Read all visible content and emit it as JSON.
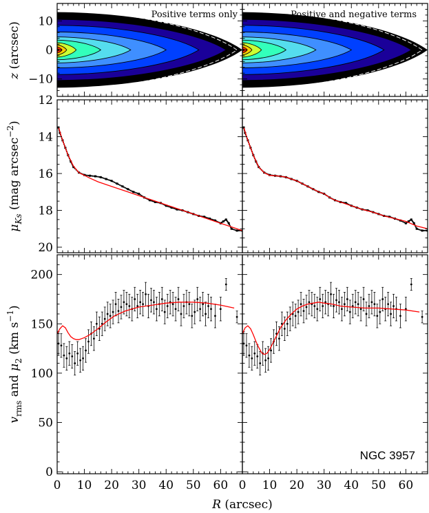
{
  "figure": {
    "annotations": {
      "left_title": "Positive terms only",
      "right_title": "Positive and negative terms",
      "galaxy": "NGC 3957"
    }
  },
  "chart_data": [
    {
      "type": "heatmap",
      "panel": "top-left",
      "title": "Positive terms only",
      "xlabel": "",
      "ylabel": "z (arcsec)",
      "xlim": [
        0,
        68
      ],
      "ylim": [
        -16,
        16
      ],
      "yticks": [
        -10,
        0,
        10
      ],
      "colormap": [
        "#000000",
        "#1a0099",
        "#0040ff",
        "#3f8fff",
        "#55ddee",
        "#33ffbb",
        "#ccff33",
        "#ffcc00",
        "#ff3300",
        "#cc0000"
      ],
      "description_free": true
    },
    {
      "type": "heatmap",
      "panel": "top-right",
      "title": "Positive and negative terms",
      "xlabel": "",
      "ylabel": "",
      "xlim": [
        0,
        68
      ],
      "ylim": [
        -16,
        16
      ],
      "yticks": [
        -10,
        0,
        10
      ]
    },
    {
      "type": "scatter",
      "panel": "middle-left",
      "xlabel": "",
      "ylabel": "μKs (mag arcsec⁻²)",
      "xlim": [
        0,
        68
      ],
      "ylim": [
        20.3,
        12
      ],
      "yticks": [
        12,
        14,
        16,
        18,
        20
      ],
      "series": [
        {
          "kind": "data",
          "x": [
            0.5,
            1,
            2,
            3,
            4,
            5,
            6,
            8,
            10,
            12,
            14,
            16,
            18,
            20,
            22,
            24,
            26,
            28,
            30,
            32,
            34,
            36,
            38,
            40,
            42,
            44,
            46,
            48,
            50,
            52,
            54,
            56,
            58,
            60,
            61,
            62,
            63,
            64,
            66,
            68
          ],
          "y": [
            13.5,
            13.8,
            14.2,
            14.6,
            15.0,
            15.35,
            15.65,
            15.95,
            16.08,
            16.12,
            16.15,
            16.2,
            16.3,
            16.4,
            16.55,
            16.7,
            16.85,
            17.0,
            17.1,
            17.3,
            17.45,
            17.55,
            17.6,
            17.75,
            17.85,
            17.95,
            18.0,
            18.1,
            18.2,
            18.3,
            18.35,
            18.45,
            18.55,
            18.7,
            18.6,
            18.5,
            18.7,
            19.0,
            19.1,
            19.1
          ]
        },
        {
          "kind": "model",
          "color": "#ff0000",
          "x": [
            0.5,
            2,
            4,
            6,
            8,
            10,
            12,
            15,
            20,
            25,
            30,
            35,
            40,
            45,
            50,
            55,
            60,
            65,
            68
          ],
          "y": [
            13.5,
            14.2,
            15.0,
            15.6,
            15.95,
            16.1,
            16.25,
            16.45,
            16.7,
            16.95,
            17.2,
            17.45,
            17.7,
            17.95,
            18.2,
            18.45,
            18.7,
            18.95,
            19.1
          ]
        }
      ]
    },
    {
      "type": "scatter",
      "panel": "middle-right",
      "xlabel": "",
      "ylabel": "",
      "xlim": [
        0,
        68
      ],
      "ylim": [
        20.3,
        12
      ],
      "series": [
        {
          "kind": "data",
          "x": [
            0.5,
            1,
            2,
            3,
            4,
            5,
            6,
            8,
            10,
            12,
            14,
            16,
            18,
            20,
            22,
            24,
            26,
            28,
            30,
            32,
            34,
            36,
            38,
            40,
            42,
            44,
            46,
            48,
            50,
            52,
            54,
            56,
            58,
            60,
            61,
            62,
            63,
            64,
            66,
            68
          ],
          "y": [
            13.5,
            13.8,
            14.2,
            14.6,
            15.0,
            15.35,
            15.65,
            15.95,
            16.08,
            16.12,
            16.15,
            16.2,
            16.3,
            16.4,
            16.55,
            16.7,
            16.85,
            17.0,
            17.1,
            17.3,
            17.45,
            17.55,
            17.6,
            17.75,
            17.85,
            17.95,
            18.0,
            18.1,
            18.2,
            18.3,
            18.35,
            18.45,
            18.55,
            18.7,
            18.6,
            18.5,
            18.7,
            19.0,
            19.1,
            19.1
          ]
        },
        {
          "kind": "model",
          "color": "#ff0000",
          "x": [
            0.5,
            2,
            4,
            6,
            8,
            10,
            12,
            14,
            16,
            18,
            20,
            22,
            24,
            26,
            28,
            30,
            32,
            34,
            36,
            40,
            44,
            48,
            52,
            56,
            60,
            64,
            68
          ],
          "y": [
            13.5,
            14.2,
            15.0,
            15.65,
            15.95,
            16.1,
            16.12,
            16.15,
            16.2,
            16.3,
            16.4,
            16.55,
            16.7,
            16.85,
            17.0,
            17.1,
            17.3,
            17.45,
            17.55,
            17.75,
            17.95,
            18.1,
            18.3,
            18.45,
            18.6,
            18.85,
            19.0
          ]
        }
      ]
    },
    {
      "type": "scatter",
      "panel": "bottom-left",
      "xlabel": "R (arcsec)",
      "ylabel": "vrms and μ2 (km s⁻¹)",
      "xlim": [
        0,
        68
      ],
      "ylim": [
        -2,
        220
      ],
      "xticks": [
        0,
        10,
        20,
        30,
        40,
        50,
        60
      ],
      "yticks": [
        0,
        50,
        100,
        150,
        200
      ],
      "series": [
        {
          "kind": "data",
          "x": [
            0.5,
            1.5,
            2.5,
            3.5,
            4.5,
            5.5,
            6.5,
            7.5,
            8.5,
            9.5,
            10.5,
            11.5,
            12.5,
            13.5,
            14.5,
            15.5,
            16.5,
            17.5,
            18.5,
            19.5,
            20.5,
            21.5,
            22.5,
            23.5,
            24.5,
            25.5,
            26.5,
            27.5,
            28.5,
            29.5,
            30.5,
            31.5,
            32.5,
            33.5,
            34.5,
            35.5,
            36.5,
            37.5,
            38.5,
            39.5,
            40.5,
            41.5,
            42.5,
            43.5,
            44.5,
            45.5,
            46.5,
            47.5,
            48.5,
            49.5,
            50.5,
            51.5,
            52.5,
            53.5,
            54.5,
            55.5,
            56.5,
            58,
            60,
            62,
            66
          ],
          "y": [
            130,
            128,
            118,
            115,
            120,
            117,
            110,
            120,
            113,
            115,
            123,
            132,
            140,
            135,
            150,
            145,
            150,
            155,
            160,
            158,
            162,
            170,
            163,
            167,
            172,
            170,
            168,
            165,
            175,
            168,
            172,
            170,
            180,
            168,
            174,
            172,
            165,
            170,
            175,
            162,
            168,
            172,
            170,
            165,
            175,
            160,
            168,
            172,
            170,
            158,
            162,
            175,
            165,
            170,
            160,
            168,
            165,
            158,
            165,
            190,
            157
          ],
          "err": [
            12,
            12,
            12,
            12,
            12,
            12,
            12,
            12,
            12,
            12,
            12,
            12,
            12,
            12,
            12,
            12,
            12,
            12,
            12,
            12,
            12,
            12,
            12,
            12,
            12,
            12,
            12,
            12,
            12,
            12,
            12,
            12,
            12,
            12,
            12,
            12,
            12,
            12,
            12,
            12,
            12,
            12,
            12,
            12,
            12,
            12,
            12,
            12,
            12,
            12,
            12,
            12,
            12,
            12,
            12,
            12,
            12,
            12,
            12,
            6,
            6
          ]
        },
        {
          "kind": "model",
          "color": "#ff0000",
          "x": [
            0,
            1,
            2,
            3,
            4,
            5,
            6,
            7,
            8,
            10,
            12,
            15,
            18,
            21,
            25,
            30,
            35,
            40,
            45,
            50,
            55,
            60,
            65
          ],
          "y": [
            140,
            145,
            148,
            146,
            141,
            137,
            135,
            134,
            134,
            136,
            139,
            145,
            152,
            158,
            163,
            167,
            169,
            171,
            172,
            172,
            171,
            169,
            166
          ]
        }
      ]
    },
    {
      "type": "scatter",
      "panel": "bottom-right",
      "xlabel": "R (arcsec)",
      "ylabel": "",
      "xlim": [
        0,
        68
      ],
      "ylim": [
        -2,
        220
      ],
      "xticks": [
        0,
        10,
        20,
        30,
        40,
        50,
        60
      ],
      "annotation": "NGC 3957",
      "series": [
        {
          "kind": "data",
          "x": [
            0.5,
            1.5,
            2.5,
            3.5,
            4.5,
            5.5,
            6.5,
            7.5,
            8.5,
            9.5,
            10.5,
            11.5,
            12.5,
            13.5,
            14.5,
            15.5,
            16.5,
            17.5,
            18.5,
            19.5,
            20.5,
            21.5,
            22.5,
            23.5,
            24.5,
            25.5,
            26.5,
            27.5,
            28.5,
            29.5,
            30.5,
            31.5,
            32.5,
            33.5,
            34.5,
            35.5,
            36.5,
            37.5,
            38.5,
            39.5,
            40.5,
            41.5,
            42.5,
            43.5,
            44.5,
            45.5,
            46.5,
            47.5,
            48.5,
            49.5,
            50.5,
            51.5,
            52.5,
            53.5,
            54.5,
            55.5,
            56.5,
            58,
            60,
            62,
            66
          ],
          "y": [
            130,
            128,
            118,
            115,
            120,
            117,
            110,
            120,
            113,
            115,
            123,
            132,
            140,
            135,
            150,
            145,
            150,
            155,
            160,
            158,
            162,
            170,
            163,
            167,
            172,
            170,
            168,
            165,
            175,
            168,
            172,
            170,
            180,
            168,
            174,
            172,
            165,
            170,
            175,
            162,
            168,
            172,
            170,
            165,
            175,
            160,
            168,
            172,
            170,
            158,
            162,
            175,
            165,
            170,
            160,
            168,
            165,
            158,
            165,
            190,
            157
          ],
          "err": [
            12,
            12,
            12,
            12,
            12,
            12,
            12,
            12,
            12,
            12,
            12,
            12,
            12,
            12,
            12,
            12,
            12,
            12,
            12,
            12,
            12,
            12,
            12,
            12,
            12,
            12,
            12,
            12,
            12,
            12,
            12,
            12,
            12,
            12,
            12,
            12,
            12,
            12,
            12,
            12,
            12,
            12,
            12,
            12,
            12,
            12,
            12,
            12,
            12,
            12,
            12,
            12,
            12,
            12,
            12,
            12,
            12,
            12,
            12,
            6,
            6
          ]
        },
        {
          "kind": "model",
          "color": "#ff0000",
          "x": [
            0,
            1,
            2,
            3,
            4,
            5,
            6,
            7,
            8,
            9,
            10,
            12,
            14,
            16,
            18,
            20,
            22,
            24,
            26,
            28,
            30,
            33,
            36,
            40,
            45,
            50,
            55,
            60,
            65
          ],
          "y": [
            140,
            146,
            148,
            145,
            139,
            132,
            126,
            121,
            119,
            120,
            124,
            135,
            146,
            154,
            160,
            165,
            168,
            170,
            171,
            172,
            171,
            170,
            168,
            167,
            166,
            166,
            165,
            164,
            162
          ]
        }
      ]
    }
  ]
}
